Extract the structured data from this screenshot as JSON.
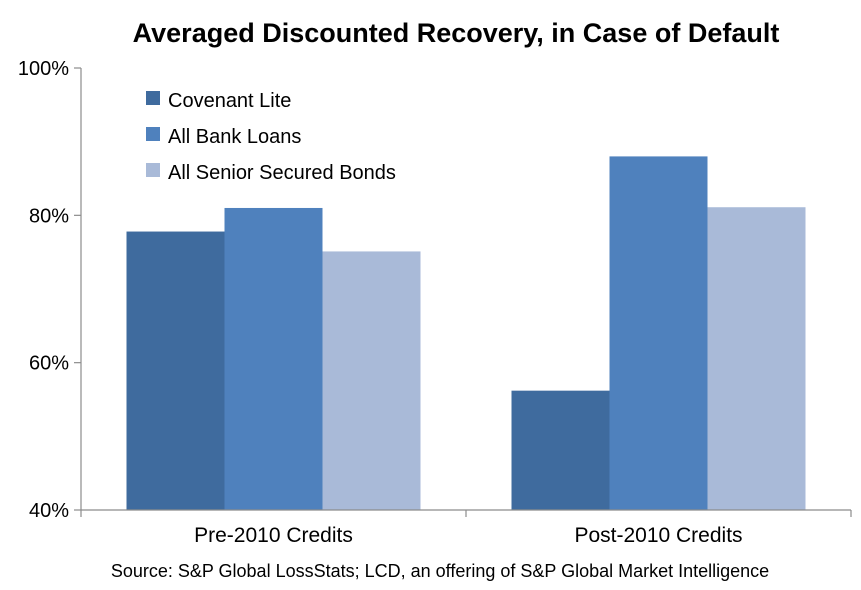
{
  "chart_data": {
    "type": "bar",
    "title": "Averaged Discounted Recovery, in Case of Default",
    "categories": [
      "Pre-2010 Credits",
      "Post-2010 Credits"
    ],
    "series": [
      {
        "name": "Covenant Lite",
        "color": "#3f6b9e",
        "values": [
          77.8,
          56.2
        ]
      },
      {
        "name": "All Bank Loans",
        "color": "#4f81bd",
        "values": [
          81.0,
          88.0
        ]
      },
      {
        "name": "All Senior Secured Bonds",
        "color": "#a9bad8",
        "values": [
          75.1,
          81.1
        ]
      }
    ],
    "ylim": [
      40,
      100
    ],
    "yticks": [
      40,
      60,
      80,
      100
    ],
    "ytick_labels": [
      "40%",
      "60%",
      "80%",
      "100%"
    ],
    "grid": false,
    "legend": "top-left"
  },
  "source_note": "Source: S&P Global LossStats; LCD, an offering of S&P Global Market Intelligence"
}
